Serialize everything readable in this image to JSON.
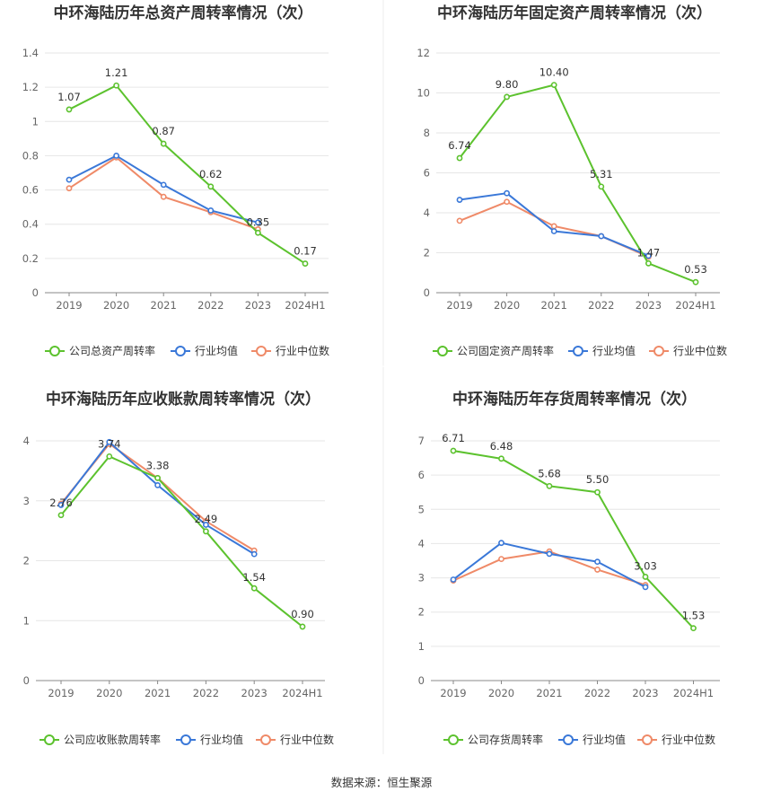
{
  "colors": {
    "company": "#5cc22e",
    "industry_avg": "#3a78d8",
    "industry_median": "#ef8a68",
    "grid": "#e6e6e6",
    "divider": "#eeeeee"
  },
  "legend_labels": {
    "industry_avg": "行业均值",
    "industry_median": "行业中位数"
  },
  "source": "数据来源：恒生聚源",
  "chart_data": [
    {
      "type": "line",
      "title": "中环海陆历年总资产周转率情况（次）",
      "categories": [
        "2019",
        "2020",
        "2021",
        "2022",
        "2023",
        "2024H1"
      ],
      "ylim": [
        0,
        1.4
      ],
      "yticks": [
        "0",
        "0.2",
        "0.4",
        "0.6",
        "0.8",
        "1",
        "1.2",
        "1.4"
      ],
      "series": [
        {
          "name": "公司总资产周转率",
          "key": "company",
          "values": [
            1.07,
            1.21,
            0.87,
            0.62,
            0.35,
            0.17
          ],
          "labels": [
            "1.07",
            "1.21",
            "0.87",
            "0.62",
            "0.35",
            "0.17"
          ]
        },
        {
          "name": "行业均值",
          "key": "industry_avg",
          "values": [
            0.66,
            0.8,
            0.63,
            0.48,
            0.41,
            null
          ]
        },
        {
          "name": "行业中位数",
          "key": "industry_median",
          "values": [
            0.61,
            0.79,
            0.56,
            0.47,
            0.37,
            null
          ]
        }
      ]
    },
    {
      "type": "line",
      "title": "中环海陆历年固定资产周转率情况（次）",
      "categories": [
        "2019",
        "2020",
        "2021",
        "2022",
        "2023",
        "2024H1"
      ],
      "ylim": [
        0,
        12
      ],
      "yticks": [
        "0",
        "2",
        "4",
        "6",
        "8",
        "10",
        "12"
      ],
      "series": [
        {
          "name": "公司固定资产周转率",
          "key": "company",
          "values": [
            6.74,
            9.8,
            10.4,
            5.31,
            1.47,
            0.53
          ],
          "labels": [
            "6.74",
            "9.80",
            "10.40",
            "5.31",
            "1.47",
            "0.53"
          ]
        },
        {
          "name": "行业均值",
          "key": "industry_avg",
          "values": [
            4.65,
            4.98,
            3.08,
            2.83,
            1.85,
            null
          ]
        },
        {
          "name": "行业中位数",
          "key": "industry_median",
          "values": [
            3.6,
            4.55,
            3.33,
            2.83,
            1.8,
            null
          ]
        }
      ]
    },
    {
      "type": "line",
      "title": "中环海陆历年应收账款周转率情况（次）",
      "categories": [
        "2019",
        "2020",
        "2021",
        "2022",
        "2023",
        "2024H1"
      ],
      "ylim": [
        0,
        4
      ],
      "yticks": [
        "0",
        "1",
        "2",
        "3",
        "4"
      ],
      "series": [
        {
          "name": "公司应收账款周转率",
          "key": "company",
          "values": [
            2.76,
            3.74,
            3.38,
            2.49,
            1.54,
            0.9
          ],
          "labels": [
            "2.76",
            "3.74",
            "3.38",
            "2.49",
            "1.54",
            "0.90"
          ]
        },
        {
          "name": "行业均值",
          "key": "industry_avg",
          "values": [
            2.93,
            3.98,
            3.26,
            2.6,
            2.11,
            null
          ]
        },
        {
          "name": "行业中位数",
          "key": "industry_median",
          "values": [
            2.95,
            3.95,
            3.38,
            2.66,
            2.17,
            null
          ]
        }
      ]
    },
    {
      "type": "line",
      "title": "中环海陆历年存货周转率情况（次）",
      "categories": [
        "2019",
        "2020",
        "2021",
        "2022",
        "2023",
        "2024H1"
      ],
      "ylim": [
        0,
        7
      ],
      "yticks": [
        "0",
        "1",
        "2",
        "3",
        "4",
        "5",
        "6",
        "7"
      ],
      "series": [
        {
          "name": "公司存货周转率",
          "key": "company",
          "values": [
            6.71,
            6.48,
            5.68,
            5.5,
            3.03,
            1.53
          ],
          "labels": [
            "6.71",
            "6.48",
            "5.68",
            "5.50",
            "3.03",
            "1.53"
          ]
        },
        {
          "name": "行业均值",
          "key": "industry_avg",
          "values": [
            2.95,
            4.02,
            3.7,
            3.47,
            2.73,
            null
          ]
        },
        {
          "name": "行业中位数",
          "key": "industry_median",
          "values": [
            2.92,
            3.55,
            3.77,
            3.24,
            2.79,
            null
          ]
        }
      ]
    }
  ]
}
